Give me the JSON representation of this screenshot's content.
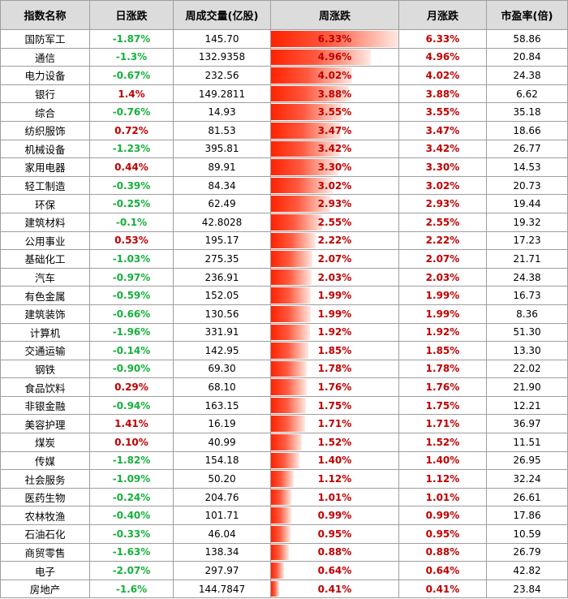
{
  "headers": [
    "指数名称",
    "日涨跌",
    "周成交量(亿股)",
    "周涨跌",
    "月涨跌",
    "市盈率(倍)"
  ],
  "colors": {
    "up": "#c00000",
    "down": "#17b03c",
    "bar": "#ff2200",
    "header_bg": "#dcdcdc"
  },
  "chart_data": {
    "type": "table",
    "week_bar_max": 6.33,
    "rows": [
      {
        "name": "国防军工",
        "day": "-1.87%",
        "volume": "145.70",
        "week": "6.33%",
        "week_value": 6.33,
        "month": "6.33%",
        "pe": "58.86"
      },
      {
        "name": "通信",
        "day": "-1.3%",
        "volume": "132.9358",
        "week": "4.96%",
        "week_value": 4.96,
        "month": "4.96%",
        "pe": "20.84"
      },
      {
        "name": "电力设备",
        "day": "-0.67%",
        "volume": "232.56",
        "week": "4.02%",
        "week_value": 4.02,
        "month": "4.02%",
        "pe": "24.38"
      },
      {
        "name": "银行",
        "day": "1.4%",
        "volume": "149.2811",
        "week": "3.88%",
        "week_value": 3.88,
        "month": "3.88%",
        "pe": "6.62"
      },
      {
        "name": "综合",
        "day": "-0.76%",
        "volume": "14.93",
        "week": "3.55%",
        "week_value": 3.55,
        "month": "3.55%",
        "pe": "35.18"
      },
      {
        "name": "纺织服饰",
        "day": "0.72%",
        "volume": "81.53",
        "week": "3.47%",
        "week_value": 3.47,
        "month": "3.47%",
        "pe": "18.66"
      },
      {
        "name": "机械设备",
        "day": "-1.23%",
        "volume": "395.81",
        "week": "3.42%",
        "week_value": 3.42,
        "month": "3.42%",
        "pe": "26.77"
      },
      {
        "name": "家用电器",
        "day": "0.44%",
        "volume": "89.91",
        "week": "3.30%",
        "week_value": 3.3,
        "month": "3.30%",
        "pe": "14.53"
      },
      {
        "name": "轻工制造",
        "day": "-0.39%",
        "volume": "84.34",
        "week": "3.02%",
        "week_value": 3.02,
        "month": "3.02%",
        "pe": "20.73"
      },
      {
        "name": "环保",
        "day": "-0.25%",
        "volume": "62.49",
        "week": "2.93%",
        "week_value": 2.93,
        "month": "2.93%",
        "pe": "19.44"
      },
      {
        "name": "建筑材料",
        "day": "-0.1%",
        "volume": "42.8028",
        "week": "2.55%",
        "week_value": 2.55,
        "month": "2.55%",
        "pe": "19.32"
      },
      {
        "name": "公用事业",
        "day": "0.53%",
        "volume": "195.17",
        "week": "2.22%",
        "week_value": 2.22,
        "month": "2.22%",
        "pe": "17.23"
      },
      {
        "name": "基础化工",
        "day": "-1.03%",
        "volume": "275.35",
        "week": "2.07%",
        "week_value": 2.07,
        "month": "2.07%",
        "pe": "21.71"
      },
      {
        "name": "汽车",
        "day": "-0.97%",
        "volume": "236.91",
        "week": "2.03%",
        "week_value": 2.03,
        "month": "2.03%",
        "pe": "24.38"
      },
      {
        "name": "有色金属",
        "day": "-0.59%",
        "volume": "152.05",
        "week": "1.99%",
        "week_value": 1.99,
        "month": "1.99%",
        "pe": "16.73"
      },
      {
        "name": "建筑装饰",
        "day": "-0.66%",
        "volume": "130.56",
        "week": "1.99%",
        "week_value": 1.99,
        "month": "1.99%",
        "pe": "8.36"
      },
      {
        "name": "计算机",
        "day": "-1.96%",
        "volume": "331.91",
        "week": "1.92%",
        "week_value": 1.92,
        "month": "1.92%",
        "pe": "51.30"
      },
      {
        "name": "交通运输",
        "day": "-0.14%",
        "volume": "142.95",
        "week": "1.85%",
        "week_value": 1.85,
        "month": "1.85%",
        "pe": "13.30"
      },
      {
        "name": "钢铁",
        "day": "-0.90%",
        "volume": "69.30",
        "week": "1.78%",
        "week_value": 1.78,
        "month": "1.78%",
        "pe": "22.02"
      },
      {
        "name": "食品饮料",
        "day": "0.29%",
        "volume": "68.10",
        "week": "1.76%",
        "week_value": 1.76,
        "month": "1.76%",
        "pe": "21.90"
      },
      {
        "name": "非银金融",
        "day": "-0.94%",
        "volume": "163.15",
        "week": "1.75%",
        "week_value": 1.75,
        "month": "1.75%",
        "pe": "12.21"
      },
      {
        "name": "美容护理",
        "day": "1.41%",
        "volume": "16.19",
        "week": "1.71%",
        "week_value": 1.71,
        "month": "1.71%",
        "pe": "36.97"
      },
      {
        "name": "煤炭",
        "day": "0.10%",
        "volume": "40.99",
        "week": "1.52%",
        "week_value": 1.52,
        "month": "1.52%",
        "pe": "11.51"
      },
      {
        "name": "传媒",
        "day": "-1.82%",
        "volume": "154.18",
        "week": "1.40%",
        "week_value": 1.4,
        "month": "1.40%",
        "pe": "26.95"
      },
      {
        "name": "社会服务",
        "day": "-1.09%",
        "volume": "50.20",
        "week": "1.12%",
        "week_value": 1.12,
        "month": "1.12%",
        "pe": "32.24"
      },
      {
        "name": "医药生物",
        "day": "-0.24%",
        "volume": "204.76",
        "week": "1.01%",
        "week_value": 1.01,
        "month": "1.01%",
        "pe": "26.61"
      },
      {
        "name": "农林牧渔",
        "day": "-0.40%",
        "volume": "101.71",
        "week": "0.99%",
        "week_value": 0.99,
        "month": "0.99%",
        "pe": "17.86"
      },
      {
        "name": "石油石化",
        "day": "-0.33%",
        "volume": "46.04",
        "week": "0.95%",
        "week_value": 0.95,
        "month": "0.95%",
        "pe": "10.59"
      },
      {
        "name": "商贸零售",
        "day": "-1.63%",
        "volume": "138.34",
        "week": "0.88%",
        "week_value": 0.88,
        "month": "0.88%",
        "pe": "26.79"
      },
      {
        "name": "电子",
        "day": "-2.07%",
        "volume": "297.97",
        "week": "0.64%",
        "week_value": 0.64,
        "month": "0.64%",
        "pe": "42.82"
      },
      {
        "name": "房地产",
        "day": "-1.6%",
        "volume": "144.7847",
        "week": "0.41%",
        "week_value": 0.41,
        "month": "0.41%",
        "pe": "23.84"
      }
    ]
  }
}
